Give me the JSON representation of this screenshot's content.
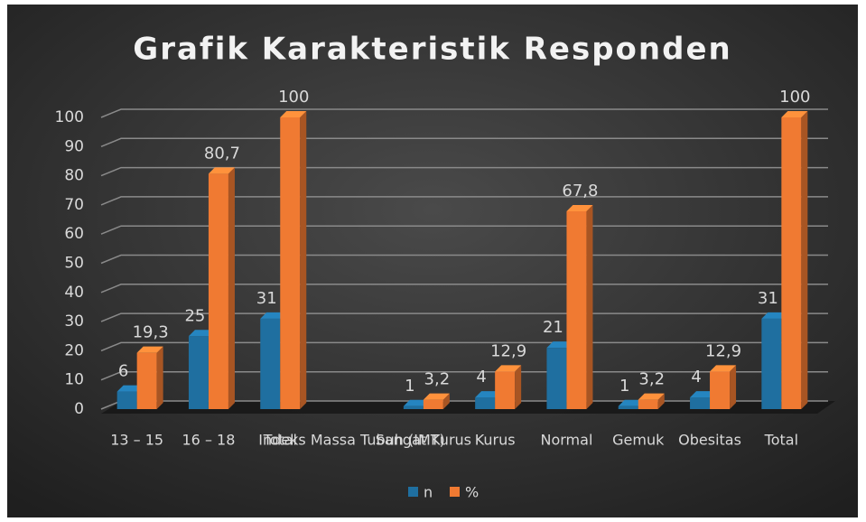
{
  "chart_data": {
    "type": "bar",
    "title": "Grafik Karakteristik Responden",
    "categories": [
      "13 – 15",
      "16 – 18",
      "Total",
      "Indeks Massa Tubuh (IMT)",
      "Sangat Kurus",
      "Kurus",
      "Normal",
      "Gemuk",
      "Obesitas",
      "Total"
    ],
    "series": [
      {
        "name": "n",
        "color": "#1f6fa0",
        "values": [
          6,
          25,
          31,
          null,
          1,
          4,
          21,
          1,
          4,
          31
        ]
      },
      {
        "name": "%",
        "color": "#f07a32",
        "values": [
          19.3,
          80.7,
          100,
          null,
          3.2,
          12.9,
          67.8,
          3.2,
          12.9,
          100
        ],
        "value_labels": [
          "19,3",
          "80,7",
          "100",
          null,
          "3,2",
          "12,9",
          "67,8",
          "3,2",
          "12,9",
          "100"
        ]
      }
    ],
    "ylim": [
      0,
      100
    ],
    "yticks": [
      0,
      10,
      20,
      30,
      40,
      50,
      60,
      70,
      80,
      90,
      100
    ],
    "grid": true,
    "legend": "bottom"
  }
}
